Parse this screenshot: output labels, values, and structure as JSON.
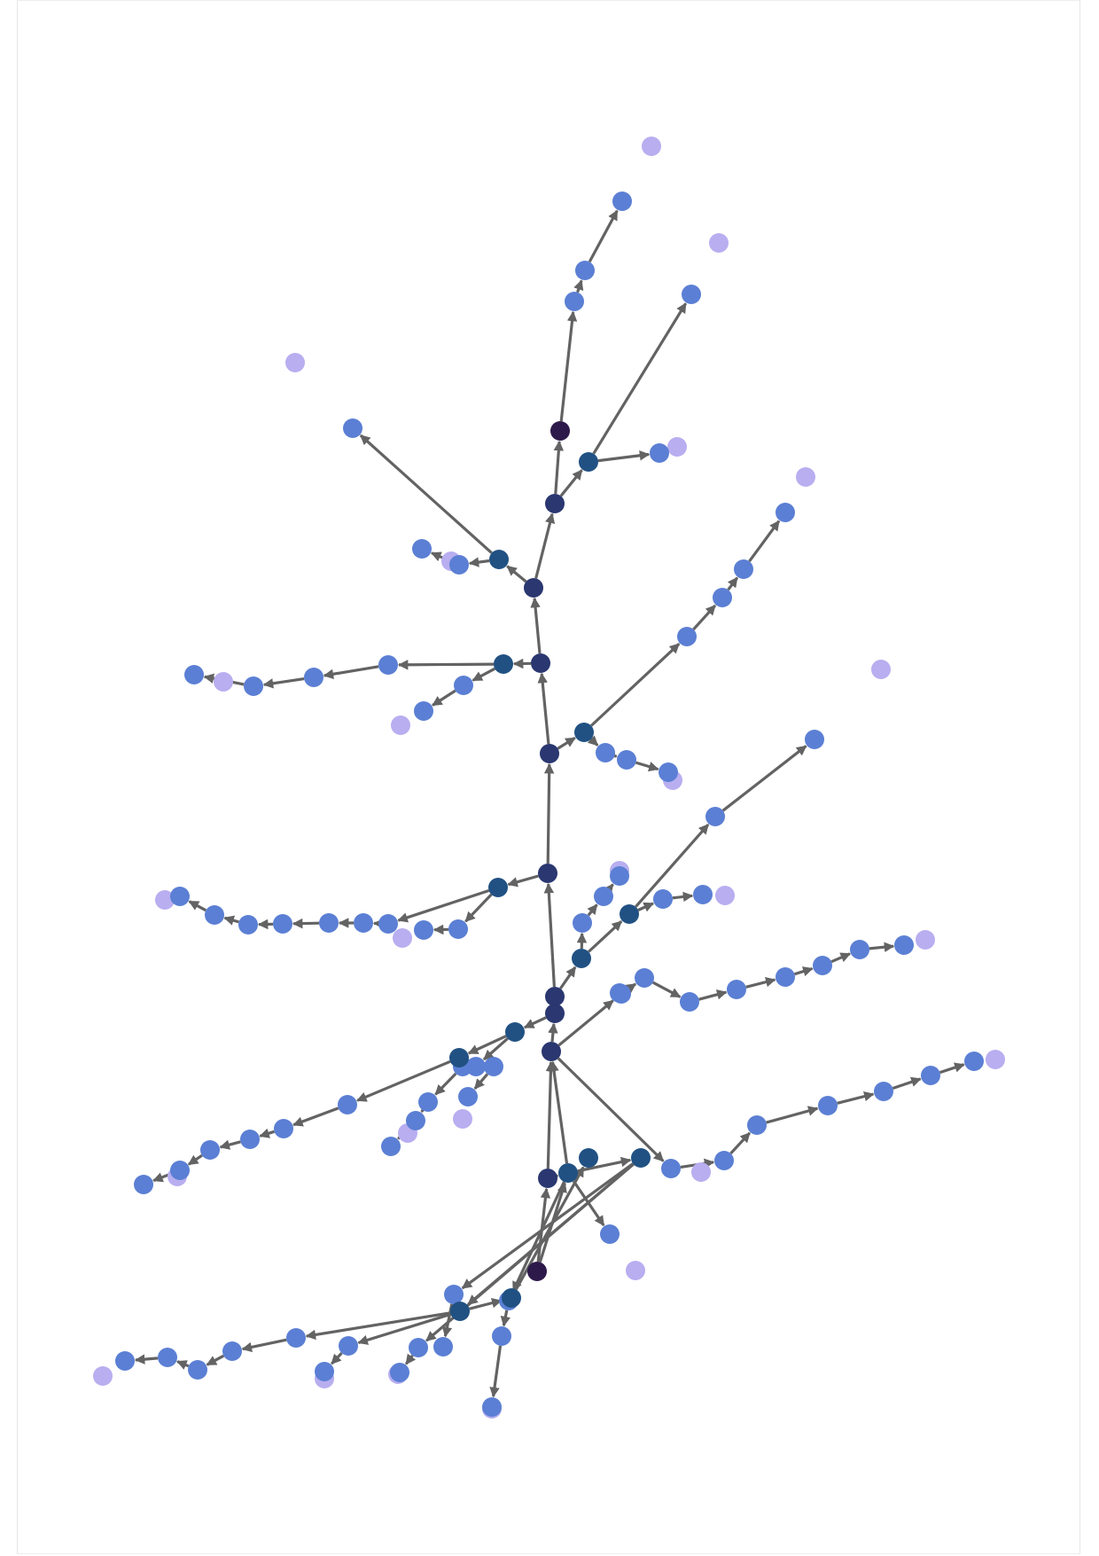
{
  "chart_data": {
    "type": "diagram",
    "title": "",
    "description_kind": "directed tree of nodes connected by arrows",
    "palette": {
      "edge": "#636363",
      "root": "#2e1a4a",
      "hub": "#2a3770",
      "branch": "#215183",
      "inner": "#5b7fd4",
      "leaf": "#b8aef0"
    },
    "node_count_by_type": {
      "root": 2,
      "hub": 10,
      "branch": 15,
      "inner": 79,
      "leaf": 25
    }
  }
}
